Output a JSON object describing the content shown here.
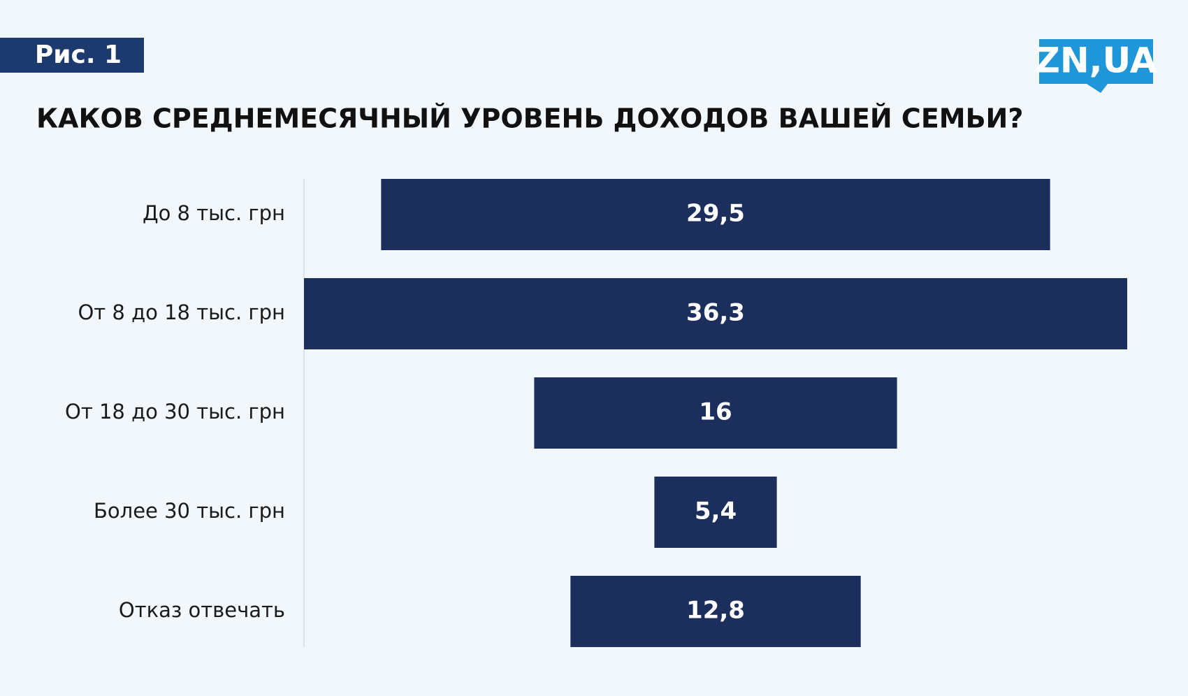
{
  "figure_label": "Рис. 1",
  "logo": "ZN,UA",
  "chart_data": {
    "type": "funnel",
    "title": "КАКОВ СРЕДНЕМЕСЯЧНЫЙ УРОВЕНЬ ДОХОДОВ ВАШЕЙ СЕМЬИ?",
    "categories": [
      "До 8 тыс. грн",
      "От 8 до 18 тыс. грн",
      "От 18 до 30 тыс. грн",
      "Более 30 тыс. грн",
      "Отказ отвечать"
    ],
    "values": [
      29.5,
      36.3,
      16,
      5.4,
      12.8
    ],
    "value_labels": [
      "29,5",
      "36,3",
      "16",
      "5,4",
      "12,8"
    ],
    "color": "#1c2f5c"
  }
}
